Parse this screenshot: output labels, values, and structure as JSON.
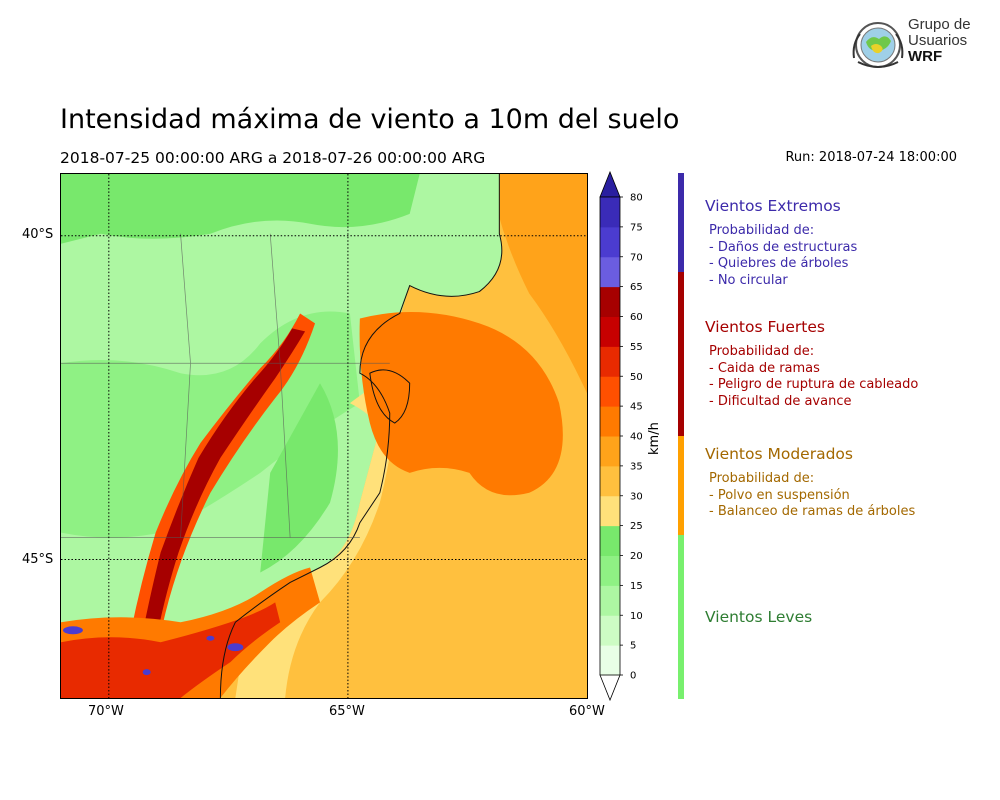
{
  "title": "Intensidad máxima de viento a 10m del suelo",
  "period": "2018-07-25 00:00:00 ARG  a  2018-07-26 00:00:00 ARG",
  "run": "Run: 2018-07-24 18:00:00",
  "logo": {
    "line1": "Grupo de",
    "line2": "Usuarios",
    "line3": "WRF"
  },
  "map": {
    "lon_range": [
      -71,
      -60
    ],
    "lat_range": [
      -47.2,
      -39.1
    ],
    "lon_ticks": [
      {
        "value": -70,
        "label": "70°W"
      },
      {
        "value": -65,
        "label": "65°W"
      },
      {
        "value": -60,
        "label": "60°W"
      }
    ],
    "lat_ticks": [
      {
        "value": -40,
        "label": "40°S"
      },
      {
        "value": -45,
        "label": "45°S"
      }
    ],
    "gridlines": "dotted"
  },
  "colorbar": {
    "unit": "km/h",
    "levels": [
      0,
      5,
      10,
      15,
      20,
      25,
      30,
      35,
      40,
      45,
      50,
      55,
      60,
      65,
      70,
      75,
      80
    ],
    "colors": [
      "#e8ffe6",
      "#cdfcc4",
      "#adf7a2",
      "#8ff184",
      "#78e86c",
      "#ffe17a",
      "#ffc03e",
      "#ffa31a",
      "#ff7a00",
      "#ff5000",
      "#e82a00",
      "#c70000",
      "#a60000",
      "#6b5de0",
      "#4b3cd0",
      "#3a2bb8"
    ],
    "extend": "both"
  },
  "categories": [
    {
      "title": "Vientos Extremos",
      "color": "#3c2aaa",
      "lines": [
        "Probabilidad de:",
        "- Daños de estructuras",
        "- Quiebres de árboles",
        "- No circular"
      ],
      "range": [
        65,
        80
      ]
    },
    {
      "title": "Vientos Fuertes",
      "color": "#a50000",
      "lines": [
        "Probabilidad de:",
        "- Caida de ramas",
        "- Peligro de ruptura de cableado",
        "- Dificultad de avance"
      ],
      "range": [
        40,
        65
      ]
    },
    {
      "title": "Vientos Moderados",
      "color": "#a36800",
      "bar_color": "#ffa000",
      "lines": [
        "Probabilidad de:",
        "- Polvo en suspensión",
        "- Balanceo de ramas de árboles"
      ],
      "range": [
        25,
        40
      ]
    },
    {
      "title": "Vientos Leves",
      "color": "#2e7d32",
      "bar_color": "#78f06e",
      "lines": [],
      "range": [
        0,
        25
      ]
    }
  ]
}
